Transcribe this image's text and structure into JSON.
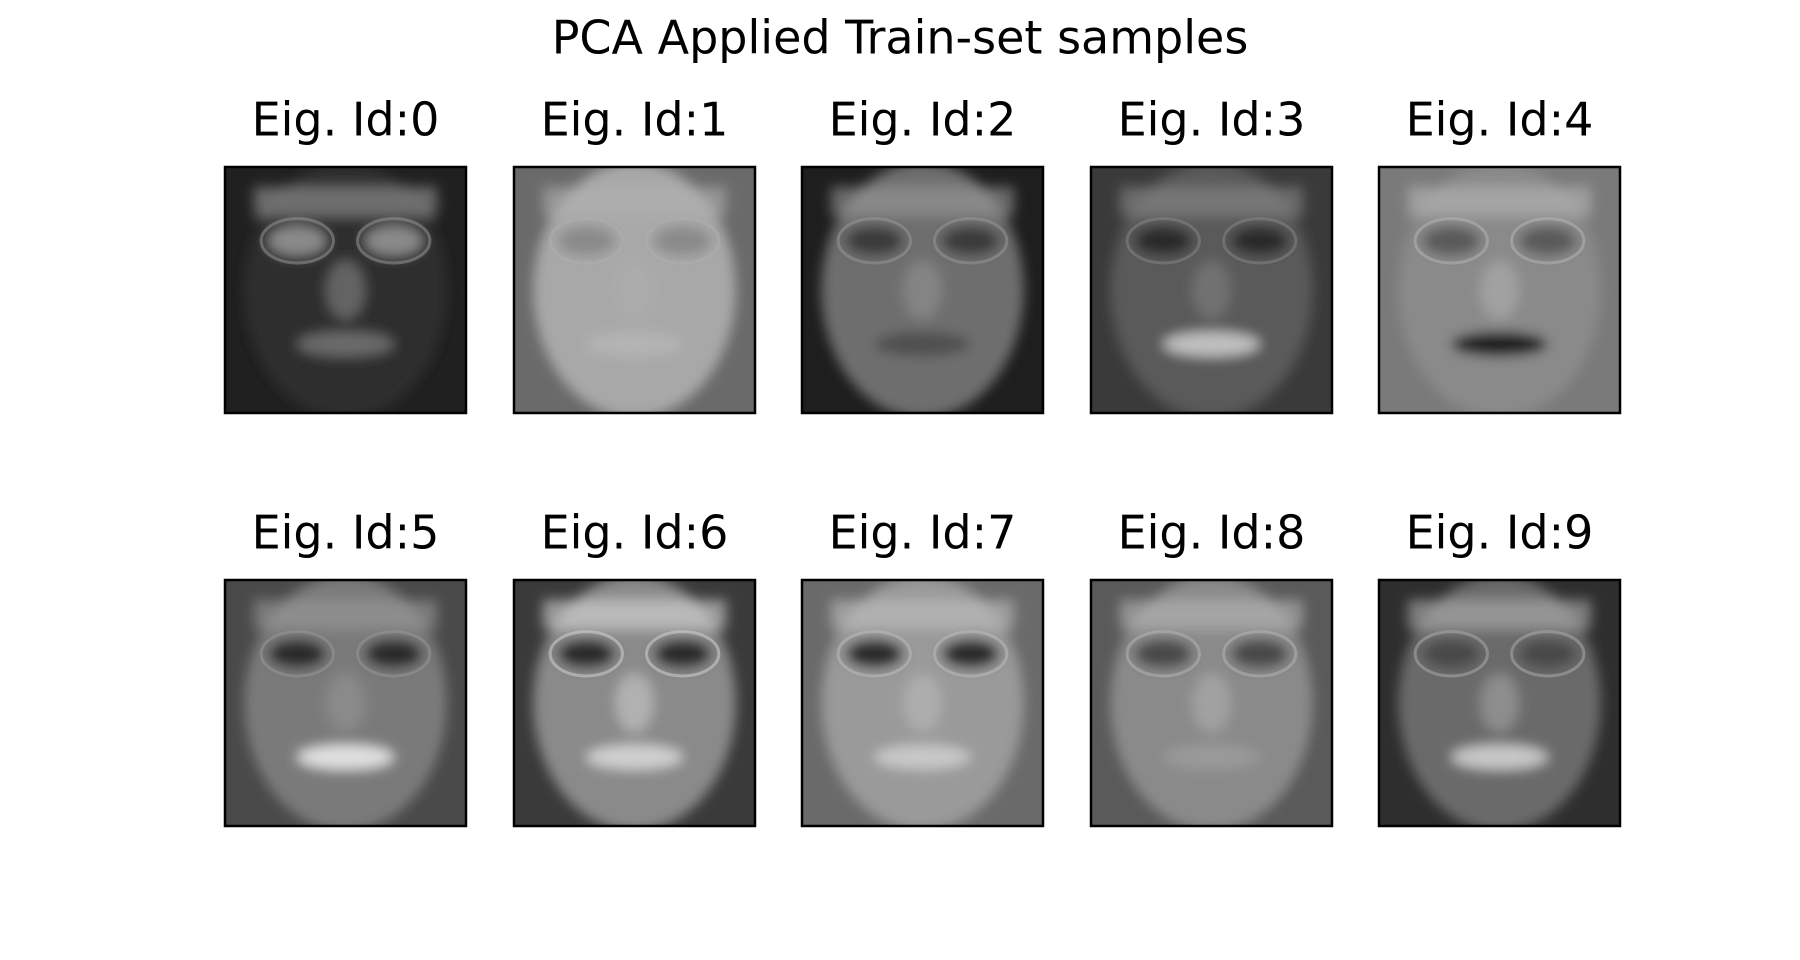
{
  "title": "PCA Applied Train-set samples",
  "panels": [
    {
      "label": "Eig. Id:0"
    },
    {
      "label": "Eig. Id:1"
    },
    {
      "label": "Eig. Id:2"
    },
    {
      "label": "Eig. Id:3"
    },
    {
      "label": "Eig. Id:4"
    },
    {
      "label": "Eig. Id:5"
    },
    {
      "label": "Eig. Id:6"
    },
    {
      "label": "Eig. Id:7"
    },
    {
      "label": "Eig. Id:8"
    },
    {
      "label": "Eig. Id:9"
    }
  ]
}
